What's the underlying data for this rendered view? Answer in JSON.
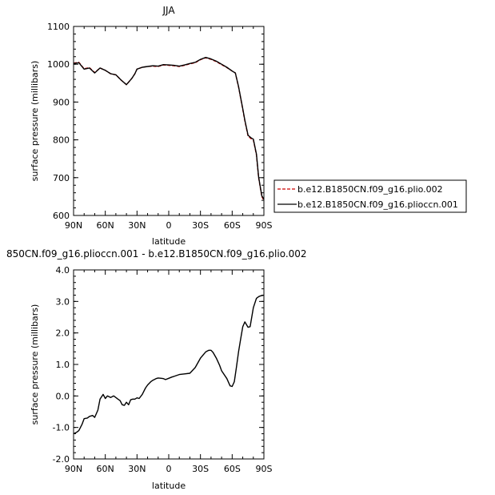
{
  "chart_data": [
    {
      "type": "line",
      "title": "JJA",
      "xlabel": "latitude",
      "ylabel": "surface pressure (millibars)",
      "xlim": [
        90,
        -90
      ],
      "ylim": [
        600,
        1100
      ],
      "xticks": [
        90,
        60,
        30,
        0,
        -30,
        -60,
        -90
      ],
      "xtick_labels": [
        "90N",
        "60N",
        "30N",
        "0",
        "30S",
        "60S",
        "90S"
      ],
      "yticks": [
        600,
        700,
        800,
        900,
        1000,
        1100
      ],
      "ytick_labels": [
        "600",
        "700",
        "800",
        "900",
        "1000",
        "1100"
      ],
      "grid": false,
      "legend_position": "outside-right",
      "series": [
        {
          "name": "b.e12.B1850CN.f09_g16.plio.002",
          "color": "#cc0000",
          "dash": "dashed",
          "x": [
            90,
            85,
            80,
            75,
            70,
            65,
            60,
            55,
            50,
            45,
            40,
            35,
            32,
            30,
            25,
            20,
            15,
            10,
            5,
            0,
            -5,
            -10,
            -15,
            -20,
            -25,
            -30,
            -35,
            -40,
            -45,
            -50,
            -55,
            -60,
            -63,
            -66,
            -70,
            -72,
            -75,
            -78,
            -80,
            -83,
            -85,
            -88,
            -90
          ],
          "y": [
            1003,
            1005,
            988,
            991,
            978,
            990,
            984,
            975,
            972,
            958,
            946,
            962,
            975,
            987,
            992,
            994,
            995,
            994,
            998,
            997,
            996,
            994,
            997,
            1001,
            1004,
            1012,
            1017,
            1013,
            1007,
            999,
            991,
            982,
            977,
            940,
            880,
            850,
            810,
            803,
            800,
            760,
            700,
            650,
            640
          ]
        },
        {
          "name": "b.e12.B1850CN.f09_g16.plioccn.001",
          "color": "#000000",
          "dash": "solid",
          "x": [
            90,
            85,
            80,
            75,
            70,
            65,
            60,
            55,
            50,
            45,
            40,
            35,
            32,
            30,
            25,
            20,
            15,
            10,
            5,
            0,
            -5,
            -10,
            -15,
            -20,
            -25,
            -30,
            -35,
            -40,
            -45,
            -50,
            -55,
            -60,
            -63,
            -66,
            -70,
            -72,
            -75,
            -78,
            -80,
            -83,
            -85,
            -88,
            -90
          ],
          "y": [
            1002,
            1004,
            987,
            990,
            977,
            990,
            984,
            975,
            972,
            958,
            946,
            962,
            975,
            987,
            992,
            994,
            996,
            995,
            999,
            998,
            997,
            995,
            998,
            1002,
            1005,
            1013,
            1018,
            1014,
            1008,
            1000,
            992,
            982,
            977,
            941,
            882,
            852,
            812,
            805,
            802,
            762,
            702,
            652,
            643
          ]
        }
      ]
    },
    {
      "type": "line",
      "title": "850CN.f09_g16.plioccn.001 - b.e12.B1850CN.f09_g16.plio.002",
      "xlabel": "latitude",
      "ylabel": "surface pressure (millibars)",
      "xlim": [
        90,
        -90
      ],
      "ylim": [
        -2.0,
        4.0
      ],
      "xticks": [
        90,
        60,
        30,
        0,
        -30,
        -60,
        -90
      ],
      "xtick_labels": [
        "90N",
        "60N",
        "30N",
        "0",
        "30S",
        "60S",
        "90S"
      ],
      "yticks": [
        -2.0,
        -1.0,
        0.0,
        1.0,
        2.0,
        3.0,
        4.0
      ],
      "ytick_labels": [
        "-2.0",
        "-1.0",
        "0.0",
        "1.0",
        "2.0",
        "3.0",
        "4.0"
      ],
      "grid": false,
      "series": [
        {
          "color": "#000000",
          "dash": "solid",
          "x": [
            90,
            87,
            85,
            82,
            80,
            77,
            75,
            72,
            70,
            67,
            65,
            62,
            60,
            58,
            55,
            52,
            50,
            48,
            46,
            44,
            42,
            40,
            38,
            36,
            34,
            32,
            30,
            28,
            25,
            22,
            20,
            17,
            15,
            12,
            10,
            7,
            5,
            3,
            0,
            -3,
            -5,
            -10,
            -15,
            -20,
            -25,
            -30,
            -35,
            -38,
            -40,
            -42,
            -45,
            -48,
            -50,
            -55,
            -58,
            -60,
            -62,
            -64,
            -66,
            -68,
            -70,
            -72,
            -75,
            -77,
            -80,
            -83,
            -85,
            -87,
            -90
          ],
          "y": [
            -1.2,
            -1.15,
            -1.1,
            -0.9,
            -0.72,
            -0.7,
            -0.65,
            -0.62,
            -0.68,
            -0.45,
            -0.1,
            0.05,
            -0.08,
            0.0,
            -0.05,
            0.0,
            -0.05,
            -0.1,
            -0.15,
            -0.28,
            -0.3,
            -0.2,
            -0.28,
            -0.12,
            -0.1,
            -0.1,
            -0.06,
            -0.08,
            0.05,
            0.25,
            0.35,
            0.45,
            0.5,
            0.55,
            0.57,
            0.56,
            0.55,
            0.52,
            0.56,
            0.6,
            0.62,
            0.68,
            0.7,
            0.72,
            0.9,
            1.2,
            1.4,
            1.45,
            1.45,
            1.38,
            1.2,
            0.98,
            0.8,
            0.55,
            0.32,
            0.3,
            0.45,
            0.9,
            1.4,
            1.8,
            2.2,
            2.35,
            2.18,
            2.2,
            2.8,
            3.1,
            3.15,
            3.18,
            3.2
          ]
        }
      ]
    }
  ]
}
